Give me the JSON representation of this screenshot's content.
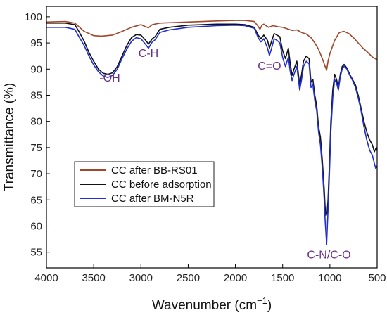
{
  "chart_data": {
    "type": "line",
    "xlabel": "Wavenumber (cm",
    "xlabel_sup": "−1",
    "xlabel_close": ")",
    "ylabel": "Transmittance (%)",
    "xlim": [
      4000,
      500
    ],
    "ylim": [
      52,
      102
    ],
    "x_reversed": true,
    "xticks": [
      4000,
      3500,
      3000,
      2500,
      2000,
      1500,
      1000,
      500
    ],
    "yticks": [
      55,
      60,
      65,
      70,
      75,
      80,
      85,
      90,
      95,
      100
    ],
    "grid": false,
    "legend_position": "lower-left",
    "annotations": [
      {
        "text": "-OH",
        "x": 3330,
        "y": 87.6
      },
      {
        "text": "C-H",
        "x": 2920,
        "y": 92.3
      },
      {
        "text": "C=O",
        "x": 1640,
        "y": 89.9
      },
      {
        "text": "C-N/C-O",
        "x": 1010,
        "y": 53.8
      }
    ],
    "series": [
      {
        "name": "CC after BB-RS01",
        "color": "#a0462a",
        "points": [
          [
            4000,
            99.0
          ],
          [
            3800,
            99.1
          ],
          [
            3700,
            98.8
          ],
          [
            3600,
            97.2
          ],
          [
            3500,
            96.4
          ],
          [
            3420,
            96.3
          ],
          [
            3300,
            96.5
          ],
          [
            3200,
            97.2
          ],
          [
            3100,
            98.0
          ],
          [
            3000,
            98.5
          ],
          [
            2950,
            98.1
          ],
          [
            2920,
            97.9
          ],
          [
            2880,
            98.5
          ],
          [
            2800,
            98.8
          ],
          [
            2500,
            99.0
          ],
          [
            2200,
            99.2
          ],
          [
            2000,
            99.3
          ],
          [
            1900,
            99.3
          ],
          [
            1800,
            99.1
          ],
          [
            1760,
            98.2
          ],
          [
            1740,
            97.6
          ],
          [
            1720,
            98.4
          ],
          [
            1700,
            98.6
          ],
          [
            1650,
            98.0
          ],
          [
            1600,
            98.3
          ],
          [
            1550,
            98.1
          ],
          [
            1500,
            98.0
          ],
          [
            1450,
            97.7
          ],
          [
            1400,
            97.4
          ],
          [
            1350,
            97.5
          ],
          [
            1300,
            97.0
          ],
          [
            1250,
            96.7
          ],
          [
            1200,
            96.0
          ],
          [
            1160,
            95.0
          ],
          [
            1120,
            93.8
          ],
          [
            1080,
            92.0
          ],
          [
            1050,
            90.5
          ],
          [
            1035,
            89.8
          ],
          [
            1020,
            91.5
          ],
          [
            1000,
            93.0
          ],
          [
            950,
            95.5
          ],
          [
            900,
            97.0
          ],
          [
            850,
            97.2
          ],
          [
            800,
            96.8
          ],
          [
            750,
            96.0
          ],
          [
            700,
            95.0
          ],
          [
            650,
            94.0
          ],
          [
            600,
            93.2
          ],
          [
            550,
            92.3
          ],
          [
            500,
            91.8
          ]
        ]
      },
      {
        "name": "CC before adsorption",
        "color": "#111111",
        "points": [
          [
            4000,
            98.8
          ],
          [
            3800,
            98.8
          ],
          [
            3700,
            98.5
          ],
          [
            3650,
            97.0
          ],
          [
            3600,
            95.3
          ],
          [
            3550,
            93.2
          ],
          [
            3500,
            91.5
          ],
          [
            3450,
            90.0
          ],
          [
            3400,
            89.2
          ],
          [
            3350,
            89.0
          ],
          [
            3300,
            89.3
          ],
          [
            3250,
            90.5
          ],
          [
            3200,
            92.5
          ],
          [
            3150,
            94.5
          ],
          [
            3100,
            96.0
          ],
          [
            3050,
            96.6
          ],
          [
            3000,
            96.5
          ],
          [
            2950,
            95.5
          ],
          [
            2920,
            94.8
          ],
          [
            2880,
            95.8
          ],
          [
            2850,
            96.2
          ],
          [
            2800,
            97.6
          ],
          [
            2700,
            98.0
          ],
          [
            2500,
            98.4
          ],
          [
            2200,
            98.6
          ],
          [
            2000,
            98.6
          ],
          [
            1900,
            98.5
          ],
          [
            1800,
            98.0
          ],
          [
            1760,
            96.5
          ],
          [
            1730,
            95.8
          ],
          [
            1700,
            96.5
          ],
          [
            1660,
            95.5
          ],
          [
            1640,
            94.0
          ],
          [
            1620,
            95.2
          ],
          [
            1590,
            96.8
          ],
          [
            1560,
            96.5
          ],
          [
            1530,
            96.2
          ],
          [
            1500,
            93.5
          ],
          [
            1470,
            92.0
          ],
          [
            1440,
            94.0
          ],
          [
            1420,
            91.0
          ],
          [
            1400,
            88.8
          ],
          [
            1380,
            90.0
          ],
          [
            1350,
            91.5
          ],
          [
            1320,
            87.0
          ],
          [
            1300,
            89.0
          ],
          [
            1280,
            91.5
          ],
          [
            1250,
            92.5
          ],
          [
            1220,
            92.0
          ],
          [
            1200,
            87.5
          ],
          [
            1180,
            88.0
          ],
          [
            1160,
            85.0
          ],
          [
            1140,
            83.0
          ],
          [
            1120,
            79.0
          ],
          [
            1100,
            77.0
          ],
          [
            1080,
            72.5
          ],
          [
            1060,
            67.0
          ],
          [
            1050,
            63.5
          ],
          [
            1040,
            62.0
          ],
          [
            1030,
            62.5
          ],
          [
            1020,
            65.0
          ],
          [
            1005,
            72.0
          ],
          [
            990,
            80.0
          ],
          [
            970,
            86.0
          ],
          [
            950,
            89.0
          ],
          [
            930,
            88.0
          ],
          [
            910,
            86.5
          ],
          [
            890,
            89.0
          ],
          [
            870,
            90.5
          ],
          [
            850,
            90.9
          ],
          [
            820,
            90.2
          ],
          [
            790,
            89.0
          ],
          [
            760,
            88.0
          ],
          [
            730,
            87.0
          ],
          [
            700,
            85.0
          ],
          [
            670,
            82.5
          ],
          [
            640,
            80.0
          ],
          [
            610,
            78.0
          ],
          [
            580,
            76.5
          ],
          [
            550,
            75.5
          ],
          [
            530,
            74.2
          ],
          [
            510,
            75.0
          ],
          [
            500,
            74.4
          ]
        ]
      },
      {
        "name": "CC after BM-N5R",
        "color": "#1f2fcf",
        "points": [
          [
            4000,
            98.0
          ],
          [
            3800,
            98.0
          ],
          [
            3700,
            97.6
          ],
          [
            3650,
            96.0
          ],
          [
            3600,
            94.5
          ],
          [
            3550,
            92.5
          ],
          [
            3500,
            90.8
          ],
          [
            3450,
            89.5
          ],
          [
            3400,
            88.7
          ],
          [
            3350,
            88.4
          ],
          [
            3300,
            88.8
          ],
          [
            3250,
            90.0
          ],
          [
            3200,
            92.0
          ],
          [
            3150,
            93.8
          ],
          [
            3100,
            95.3
          ],
          [
            3050,
            96.0
          ],
          [
            3000,
            95.8
          ],
          [
            2950,
            94.7
          ],
          [
            2920,
            94.0
          ],
          [
            2880,
            95.2
          ],
          [
            2850,
            95.6
          ],
          [
            2800,
            97.0
          ],
          [
            2700,
            97.5
          ],
          [
            2500,
            98.0
          ],
          [
            2200,
            98.3
          ],
          [
            2000,
            98.4
          ],
          [
            1900,
            98.3
          ],
          [
            1800,
            97.8
          ],
          [
            1760,
            96.0
          ],
          [
            1730,
            95.2
          ],
          [
            1700,
            95.8
          ],
          [
            1660,
            94.0
          ],
          [
            1640,
            92.6
          ],
          [
            1620,
            93.8
          ],
          [
            1590,
            95.8
          ],
          [
            1560,
            95.5
          ],
          [
            1530,
            95.0
          ],
          [
            1500,
            92.2
          ],
          [
            1470,
            90.5
          ],
          [
            1440,
            92.3
          ],
          [
            1420,
            89.5
          ],
          [
            1400,
            87.8
          ],
          [
            1380,
            89.0
          ],
          [
            1350,
            90.5
          ],
          [
            1320,
            86.0
          ],
          [
            1300,
            88.0
          ],
          [
            1280,
            90.5
          ],
          [
            1250,
            91.5
          ],
          [
            1220,
            91.0
          ],
          [
            1200,
            86.5
          ],
          [
            1180,
            87.0
          ],
          [
            1160,
            84.0
          ],
          [
            1140,
            82.0
          ],
          [
            1120,
            78.0
          ],
          [
            1100,
            75.5
          ],
          [
            1080,
            71.0
          ],
          [
            1060,
            65.0
          ],
          [
            1050,
            61.0
          ],
          [
            1040,
            58.0
          ],
          [
            1035,
            56.5
          ],
          [
            1030,
            58.5
          ],
          [
            1020,
            63.0
          ],
          [
            1005,
            70.0
          ],
          [
            990,
            78.0
          ],
          [
            970,
            84.5
          ],
          [
            950,
            88.0
          ],
          [
            930,
            87.3
          ],
          [
            910,
            86.0
          ],
          [
            890,
            88.5
          ],
          [
            870,
            90.0
          ],
          [
            850,
            90.6
          ],
          [
            820,
            90.0
          ],
          [
            790,
            88.8
          ],
          [
            760,
            87.8
          ],
          [
            730,
            86.5
          ],
          [
            700,
            84.5
          ],
          [
            670,
            82.0
          ],
          [
            640,
            79.0
          ],
          [
            610,
            76.5
          ],
          [
            580,
            74.5
          ],
          [
            550,
            73.5
          ],
          [
            530,
            72.0
          ],
          [
            515,
            71.0
          ],
          [
            500,
            71.5
          ]
        ]
      }
    ]
  }
}
